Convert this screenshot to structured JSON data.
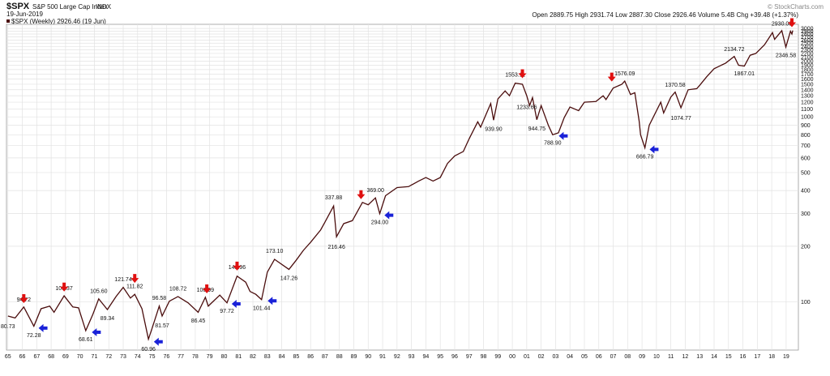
{
  "chart_data": {
    "type": "line",
    "title": "$SPX",
    "subtitle": "S&P 500 Large Cap Index",
    "exchange": "INDX",
    "date": "19-Jun-2019",
    "series_label": "$SPX (Weekly) 2926.46 (19 Jun)",
    "quote": "Open 2889.75 High 2931.74 Low 2887.30 Close 2926.46 Volume 5.4B Chg +39.48 (+1.37%)",
    "credit": "© StockCharts.com",
    "log_scale": true,
    "grid": true,
    "color": "#4a0d0d",
    "sell_color": "#e01010",
    "buy_color": "#1a22d8",
    "xlim": [
      1964.9,
      2019.85
    ],
    "ylim": [
      55,
      3160
    ],
    "xticks": [
      {
        "value": 1965,
        "label": "65"
      },
      {
        "value": 1966,
        "label": "66"
      },
      {
        "value": 1967,
        "label": "67"
      },
      {
        "value": 1968,
        "label": "68"
      },
      {
        "value": 1969,
        "label": "69"
      },
      {
        "value": 1970,
        "label": "70"
      },
      {
        "value": 1971,
        "label": "71"
      },
      {
        "value": 1972,
        "label": "72"
      },
      {
        "value": 1973,
        "label": "73"
      },
      {
        "value": 1974,
        "label": "74"
      },
      {
        "value": 1975,
        "label": "75"
      },
      {
        "value": 1976,
        "label": "76"
      },
      {
        "value": 1977,
        "label": "77"
      },
      {
        "value": 1978,
        "label": "78"
      },
      {
        "value": 1979,
        "label": "79"
      },
      {
        "value": 1980,
        "label": "80"
      },
      {
        "value": 1981,
        "label": "81"
      },
      {
        "value": 1982,
        "label": "82"
      },
      {
        "value": 1983,
        "label": "83"
      },
      {
        "value": 1984,
        "label": "84"
      },
      {
        "value": 1985,
        "label": "85"
      },
      {
        "value": 1986,
        "label": "86"
      },
      {
        "value": 1987,
        "label": "87"
      },
      {
        "value": 1988,
        "label": "88"
      },
      {
        "value": 1989,
        "label": "89"
      },
      {
        "value": 1990,
        "label": "90"
      },
      {
        "value": 1991,
        "label": "91"
      },
      {
        "value": 1992,
        "label": "92"
      },
      {
        "value": 1993,
        "label": "93"
      },
      {
        "value": 1994,
        "label": "94"
      },
      {
        "value": 1995,
        "label": "95"
      },
      {
        "value": 1996,
        "label": "96"
      },
      {
        "value": 1997,
        "label": "97"
      },
      {
        "value": 1998,
        "label": "98"
      },
      {
        "value": 1999,
        "label": "99"
      },
      {
        "value": 2000,
        "label": "00"
      },
      {
        "value": 2001,
        "label": "01"
      },
      {
        "value": 2002,
        "label": "02"
      },
      {
        "value": 2003,
        "label": "03"
      },
      {
        "value": 2004,
        "label": "04"
      },
      {
        "value": 2005,
        "label": "05"
      },
      {
        "value": 2006,
        "label": "06"
      },
      {
        "value": 2007,
        "label": "07"
      },
      {
        "value": 2008,
        "label": "08"
      },
      {
        "value": 2009,
        "label": "09"
      },
      {
        "value": 2010,
        "label": "10"
      },
      {
        "value": 2011,
        "label": "11"
      },
      {
        "value": 2012,
        "label": "12"
      },
      {
        "value": 2013,
        "label": "13"
      },
      {
        "value": 2014,
        "label": "14"
      },
      {
        "value": 2015,
        "label": "15"
      },
      {
        "value": 2016,
        "label": "16"
      },
      {
        "value": 2017,
        "label": "17"
      },
      {
        "value": 2018,
        "label": "18"
      },
      {
        "value": 2019,
        "label": "19"
      }
    ],
    "yticks": [
      100,
      200,
      300,
      400,
      500,
      600,
      700,
      800,
      900,
      1000,
      1100,
      1200,
      1300,
      1400,
      1500,
      1600,
      1700,
      1800,
      1900,
      2000,
      2100,
      2200,
      2300,
      2400,
      2500,
      2600,
      2700,
      2800,
      2900,
      3000
    ],
    "x": [
      1965.0,
      1965.5,
      1966.1,
      1966.8,
      1967.3,
      1967.9,
      1968.2,
      1968.9,
      1969.5,
      1969.9,
      1970.4,
      1970.9,
      1971.3,
      1971.9,
      1972.5,
      1973.0,
      1973.5,
      1973.8,
      1974.3,
      1974.75,
      1975.0,
      1975.5,
      1975.7,
      1976.2,
      1976.8,
      1977.5,
      1978.2,
      1978.7,
      1978.9,
      1979.7,
      1980.2,
      1980.9,
      1981.5,
      1981.8,
      1982.2,
      1982.6,
      1983.0,
      1983.5,
      1984.5,
      1985.0,
      1985.5,
      1986.0,
      1986.7,
      1987.0,
      1987.6,
      1987.8,
      1988.3,
      1988.9,
      1989.6,
      1990.0,
      1990.5,
      1990.8,
      1991.2,
      1992.0,
      1992.8,
      1993.5,
      1994.0,
      1994.5,
      1995.0,
      1995.5,
      1996.0,
      1996.6,
      1997.0,
      1997.6,
      1997.8,
      1998.5,
      1998.7,
      1999.0,
      1999.5,
      1999.8,
      2000.2,
      2000.7,
      2001.0,
      2001.2,
      2001.4,
      2001.7,
      2002.0,
      2002.5,
      2002.8,
      2003.2,
      2003.6,
      2004.0,
      2004.6,
      2005.0,
      2005.8,
      2006.3,
      2006.5,
      2007.0,
      2007.6,
      2007.8,
      2008.2,
      2008.5,
      2008.8,
      2008.9,
      2009.2,
      2009.5,
      2010.3,
      2010.5,
      2011.0,
      2011.3,
      2011.7,
      2012.2,
      2012.8,
      2013.0,
      2013.5,
      2014.0,
      2014.8,
      2015.4,
      2015.7,
      2016.1,
      2016.5,
      2016.9,
      2017.5,
      2018.05,
      2018.2,
      2018.7,
      2018.98,
      2019.3,
      2019.4,
      2019.46
    ],
    "values": [
      84,
      82,
      94,
      74,
      92,
      95,
      88,
      108,
      94,
      93,
      70,
      86,
      104,
      91,
      107,
      120,
      105,
      110,
      92,
      63,
      72,
      95,
      84,
      101,
      107,
      99,
      88,
      106,
      95,
      109,
      99,
      138,
      128,
      114,
      110,
      103,
      145,
      170,
      150,
      168,
      190,
      210,
      245,
      270,
      330,
      225,
      265,
      275,
      345,
      335,
      365,
      300,
      375,
      415,
      420,
      450,
      470,
      450,
      470,
      560,
      615,
      650,
      760,
      940,
      880,
      1180,
      960,
      1250,
      1380,
      1300,
      1520,
      1500,
      1300,
      1150,
      1270,
      965,
      1150,
      900,
      800,
      820,
      990,
      1130,
      1080,
      1200,
      1210,
      1300,
      1240,
      1430,
      1500,
      1560,
      1320,
      1350,
      950,
      800,
      680,
      900,
      1200,
      1050,
      1280,
      1360,
      1120,
      1400,
      1420,
      1480,
      1650,
      1820,
      1950,
      2120,
      1900,
      1880,
      2150,
      2200,
      2450,
      2850,
      2620,
      2920,
      2380,
      2900,
      2800,
      2926.46
    ],
    "peak_labels": [
      {
        "x": 1966.1,
        "value": 94.72,
        "label": "94.72"
      },
      {
        "x": 1968.9,
        "value": 109.37,
        "label": "109.37"
      },
      {
        "x": 1971.3,
        "value": 105.6,
        "label": "105.60"
      },
      {
        "x": 1973.0,
        "value": 121.74,
        "label": "121.74"
      },
      {
        "x": 1973.8,
        "value": 111.82,
        "label": "111.82"
      },
      {
        "x": 1975.5,
        "value": 96.58,
        "label": "96.58"
      },
      {
        "x": 1976.8,
        "value": 108.72,
        "label": "108.72"
      },
      {
        "x": 1978.7,
        "value": 106.99,
        "label": "106.99"
      },
      {
        "x": 1980.9,
        "value": 141.96,
        "label": "141.96"
      },
      {
        "x": 1983.5,
        "value": 173.1,
        "label": "173.10"
      },
      {
        "x": 1987.6,
        "value": 337.88,
        "label": "337.88"
      },
      {
        "x": 1990.5,
        "value": 369.0,
        "label": "369.00"
      },
      {
        "x": 2000.2,
        "value": 1553.11,
        "label": "1553.11"
      },
      {
        "x": 2007.8,
        "value": 1576.09,
        "label": "1576.09"
      },
      {
        "x": 2011.3,
        "value": 1370.58,
        "label": "1370.58"
      },
      {
        "x": 2015.4,
        "value": 2134.72,
        "label": "2134.72"
      },
      {
        "x": 2018.7,
        "value": 2930.03,
        "label": "2930.03"
      }
    ],
    "trough_labels": [
      {
        "x": 1965.0,
        "value": 80.73,
        "label": "80.73"
      },
      {
        "x": 1966.8,
        "value": 72.28,
        "label": "72.28"
      },
      {
        "x": 1970.4,
        "value": 68.61,
        "label": "68.61"
      },
      {
        "x": 1971.9,
        "value": 89.34,
        "label": "89.34"
      },
      {
        "x": 1974.75,
        "value": 60.96,
        "label": "60.96"
      },
      {
        "x": 1975.7,
        "value": 81.57,
        "label": "81.57"
      },
      {
        "x": 1978.2,
        "value": 86.45,
        "label": "86.45"
      },
      {
        "x": 1980.2,
        "value": 97.72,
        "label": "97.72"
      },
      {
        "x": 1982.6,
        "value": 101.44,
        "label": "101.44"
      },
      {
        "x": 1984.5,
        "value": 147.26,
        "label": "147.26"
      },
      {
        "x": 1987.8,
        "value": 216.46,
        "label": "216.46"
      },
      {
        "x": 1990.8,
        "value": 294.0,
        "label": "294.00"
      },
      {
        "x": 1998.7,
        "value": 939.9,
        "label": "939.90"
      },
      {
        "x": 2001.0,
        "value": 1233.66,
        "label": "1233.66"
      },
      {
        "x": 2001.7,
        "value": 944.75,
        "label": "944.75"
      },
      {
        "x": 2002.8,
        "value": 788.9,
        "label": "788.90"
      },
      {
        "x": 2009.2,
        "value": 666.79,
        "label": "666.79"
      },
      {
        "x": 2011.7,
        "value": 1074.77,
        "label": "1074.77"
      },
      {
        "x": 2016.1,
        "value": 1867.01,
        "label": "1867.01"
      },
      {
        "x": 2018.98,
        "value": 2346.58,
        "label": "2346.58"
      }
    ],
    "sell_signals": [
      {
        "x": 1966.1,
        "value": 94.72
      },
      {
        "x": 1968.9,
        "value": 109.37
      },
      {
        "x": 1973.8,
        "value": 121.74
      },
      {
        "x": 1978.8,
        "value": 106.99
      },
      {
        "x": 1980.9,
        "value": 141.96
      },
      {
        "x": 1989.5,
        "value": 345
      },
      {
        "x": 2000.7,
        "value": 1553.11
      },
      {
        "x": 2006.9,
        "value": 1490
      },
      {
        "x": 2019.4,
        "value": 2930.03
      }
    ],
    "buy_signals": [
      {
        "x": 1966.9,
        "value": 72.28
      },
      {
        "x": 1970.6,
        "value": 68.61
      },
      {
        "x": 1974.9,
        "value": 60.96
      },
      {
        "x": 1980.3,
        "value": 97.72
      },
      {
        "x": 1982.8,
        "value": 101.44
      },
      {
        "x": 1990.9,
        "value": 294.0
      },
      {
        "x": 2003.0,
        "value": 788.9
      },
      {
        "x": 2009.3,
        "value": 666.79
      }
    ]
  }
}
